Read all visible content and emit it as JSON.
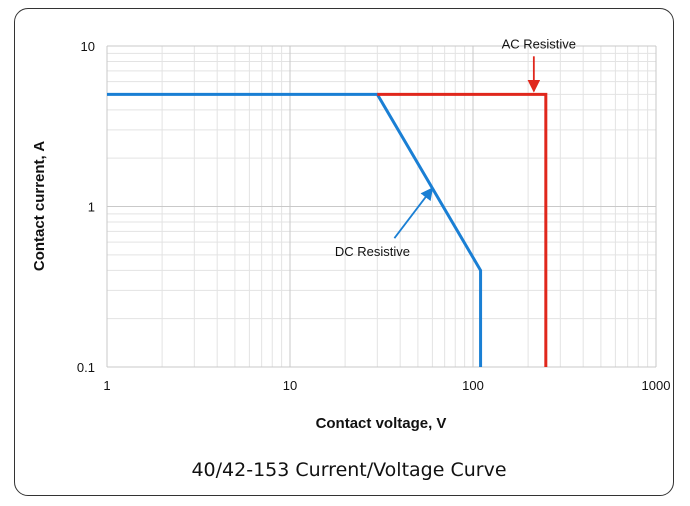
{
  "chart_data": {
    "type": "line",
    "title": "40/42-153 Current/Voltage Curve",
    "xlabel": "Contact voltage, V",
    "ylabel": "Contact current, A",
    "xscale": "log",
    "yscale": "log",
    "xlim": [
      1,
      1000
    ],
    "ylim": [
      0.1,
      10
    ],
    "x_ticks": [
      "1",
      "10",
      "100",
      "1000"
    ],
    "y_ticks": [
      "0.1",
      "1",
      "10"
    ],
    "grid": true,
    "series": [
      {
        "name": "AC Resistive",
        "color": "#e0271c",
        "points": [
          [
            30,
            5
          ],
          [
            250,
            5
          ],
          [
            250,
            0.1
          ]
        ]
      },
      {
        "name": "DC Resistive",
        "color": "#1a7fd4",
        "points": [
          [
            1,
            5
          ],
          [
            30,
            5
          ],
          [
            110,
            0.4
          ],
          [
            110,
            0.1
          ]
        ]
      }
    ],
    "annotations": [
      {
        "text": "AC Resistive",
        "target": [
          215,
          5
        ]
      },
      {
        "text": "DC Resistive",
        "target": [
          60,
          1.3
        ]
      }
    ]
  }
}
